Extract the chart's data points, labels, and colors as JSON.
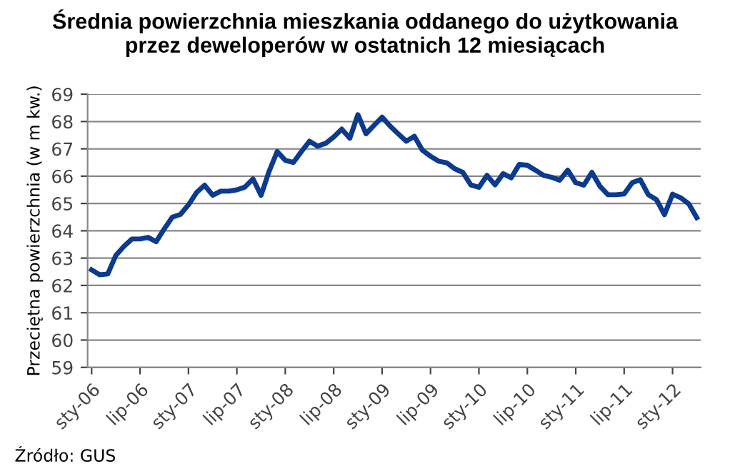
{
  "chart_data": {
    "type": "line",
    "title": "Średnia powierzchnia mieszkania oddanego do użytkowania\nprzez deweloperów w ostatnich 12 miesiącach",
    "ylabel": "Przeciętna powierzchnia (w m kw.)",
    "annotations": [
      "Źródło: GUS"
    ],
    "categories": [
      "sty-06",
      null,
      null,
      null,
      null,
      null,
      "lip-06",
      null,
      null,
      null,
      null,
      null,
      "sty-07",
      null,
      null,
      null,
      null,
      null,
      "lip-07",
      null,
      null,
      null,
      null,
      null,
      "sty-08",
      null,
      null,
      null,
      null,
      null,
      "lip-08",
      null,
      null,
      null,
      null,
      null,
      "sty-09",
      null,
      null,
      null,
      null,
      null,
      "lip-09",
      null,
      null,
      null,
      null,
      null,
      "sty-10",
      null,
      null,
      null,
      null,
      null,
      "lip-10",
      null,
      null,
      null,
      null,
      null,
      "sty-11",
      null,
      null,
      null,
      null,
      null,
      "lip-11",
      null,
      null,
      null,
      null,
      null,
      "sty-12",
      null,
      null,
      null
    ],
    "series": [
      {
        "color": "#0b3a8e",
        "values": [
          62.57,
          62.39,
          62.42,
          63.1,
          63.43,
          63.7,
          63.7,
          63.76,
          63.6,
          64.07,
          64.5,
          64.6,
          64.95,
          65.4,
          65.67,
          65.3,
          65.45,
          65.45,
          65.5,
          65.6,
          65.9,
          65.3,
          66.18,
          66.9,
          66.58,
          66.5,
          66.9,
          67.28,
          67.1,
          67.2,
          67.43,
          67.72,
          67.39,
          68.25,
          67.55,
          67.86,
          68.16,
          67.83,
          67.55,
          67.28,
          67.46,
          66.95,
          66.73,
          66.55,
          66.49,
          66.27,
          66.14,
          65.68,
          65.59,
          66.03,
          65.68,
          66.09,
          65.94,
          66.43,
          66.4,
          66.22,
          66.03,
          65.96,
          65.85,
          66.22,
          65.76,
          65.67,
          66.14,
          65.63,
          65.32,
          65.32,
          65.35,
          65.76,
          65.87,
          65.32,
          65.14,
          64.59,
          65.34,
          65.21,
          64.99,
          64.48
        ]
      }
    ],
    "ylim": [
      59,
      69
    ],
    "yticks": [
      59,
      60,
      61,
      62,
      63,
      64,
      65,
      66,
      67,
      68,
      69
    ],
    "grid": "y",
    "marker": "none",
    "line_style": "solid",
    "legend": false
  }
}
